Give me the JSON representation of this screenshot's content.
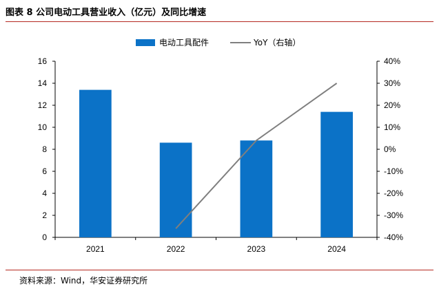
{
  "figure": {
    "title": "图表 8 公司电动工具营业收入（亿元）及同比增速",
    "source": "资料来源：Wind，华安证券研究所"
  },
  "colors": {
    "bar": "#0b72c7",
    "line": "#7f7f7f",
    "rule": "#b5271f"
  },
  "chart_data": {
    "type": "bar",
    "categories": [
      "2021",
      "2022",
      "2023",
      "2024"
    ],
    "series": [
      {
        "name": "电动工具配件",
        "type": "bar",
        "axis": "left",
        "values": [
          13.4,
          8.6,
          8.8,
          11.4
        ]
      },
      {
        "name": "YoY（右轴）",
        "type": "line",
        "axis": "right",
        "values": [
          null,
          -36,
          4,
          30
        ]
      }
    ],
    "ylim": [
      0,
      16
    ],
    "yticks": [
      "0",
      "2",
      "4",
      "6",
      "8",
      "10",
      "12",
      "14",
      "16"
    ],
    "y2lim": [
      -40,
      40
    ],
    "y2ticks": [
      "-40%",
      "-30%",
      "-20%",
      "-10%",
      "0%",
      "10%",
      "20%",
      "30%",
      "40%"
    ],
    "legend_position": "top-center",
    "grid": false
  }
}
